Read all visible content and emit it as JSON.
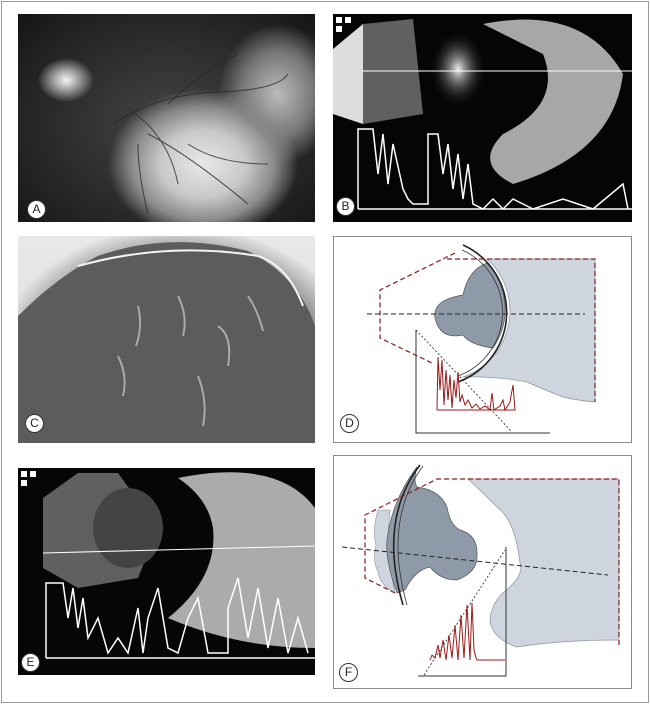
{
  "figure": {
    "panels": [
      {
        "id": "A",
        "label": "A",
        "kind": "fundus photograph"
      },
      {
        "id": "B",
        "label": "B",
        "kind": "ultrasound scan"
      },
      {
        "id": "C",
        "label": "C",
        "kind": "histology section"
      },
      {
        "id": "D",
        "label": "D",
        "kind": "diagram"
      },
      {
        "id": "E",
        "label": "E",
        "kind": "ultrasound scan"
      },
      {
        "id": "F",
        "label": "F",
        "kind": "diagram"
      }
    ],
    "colors": {
      "tumor": "#8f9aa8",
      "tissue": "#cfd5de",
      "echo_trace": "#9b1b1b",
      "outline_dashed": "#8b1a1a"
    }
  }
}
